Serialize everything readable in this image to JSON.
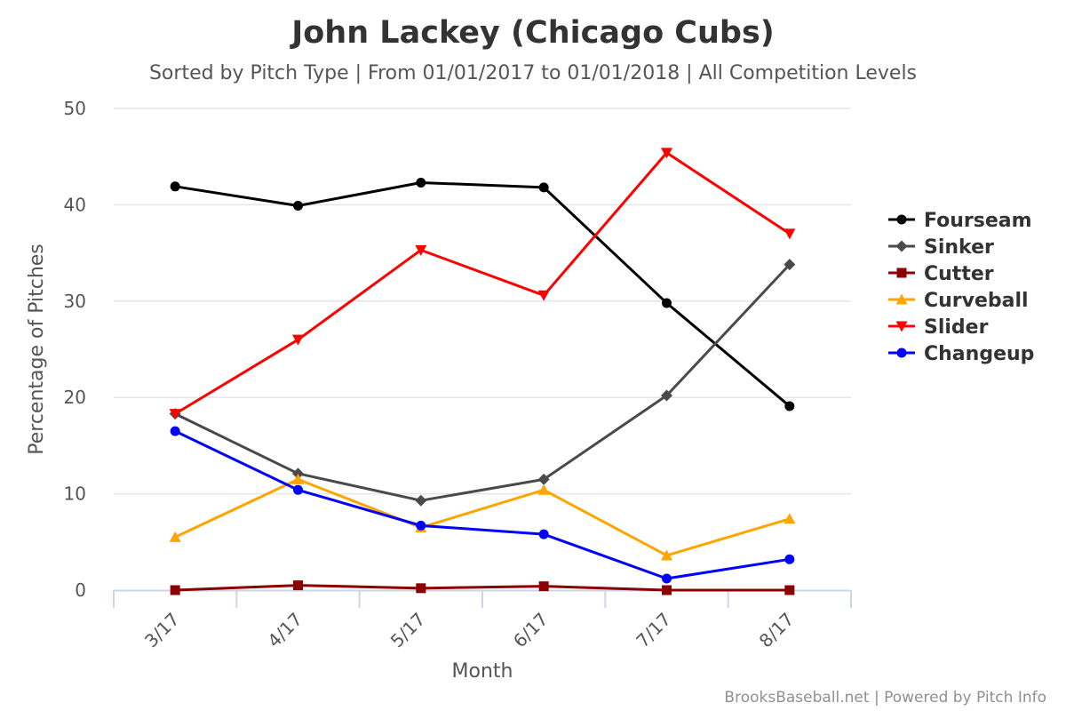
{
  "chart_data": {
    "type": "line",
    "title": "John Lackey (Chicago Cubs)",
    "subtitle": "Sorted by Pitch Type | From 01/01/2017 to 01/01/2018 | All Competition Levels",
    "xlabel": "Month",
    "ylabel": "Percentage of Pitches",
    "categories": [
      "3/17",
      "4/17",
      "5/17",
      "6/17",
      "7/17",
      "8/17"
    ],
    "ylim": [
      0,
      50
    ],
    "yticks": [
      0,
      10,
      20,
      30,
      40,
      50
    ],
    "grid": true,
    "legend_position": "right",
    "series": [
      {
        "name": "Fourseam",
        "color": "#000000",
        "marker": "circle",
        "values": [
          41.9,
          39.9,
          42.3,
          41.8,
          29.8,
          19.1
        ]
      },
      {
        "name": "Sinker",
        "color": "#4a4a4a",
        "marker": "diamond",
        "values": [
          18.3,
          12.1,
          9.3,
          11.5,
          20.2,
          33.8
        ]
      },
      {
        "name": "Cutter",
        "color": "#8b0000",
        "marker": "square",
        "values": [
          0.0,
          0.5,
          0.2,
          0.4,
          0.0,
          0.0
        ]
      },
      {
        "name": "Curveball",
        "color": "#ffa500",
        "marker": "triangle-up",
        "values": [
          5.5,
          11.5,
          6.5,
          10.4,
          3.6,
          7.4
        ]
      },
      {
        "name": "Slider",
        "color": "#ff0000",
        "marker": "triangle-down",
        "values": [
          18.3,
          26.0,
          35.3,
          30.6,
          45.4,
          37.0
        ]
      },
      {
        "name": "Changeup",
        "color": "#0000ff",
        "marker": "circle",
        "values": [
          16.5,
          10.4,
          6.7,
          5.8,
          1.2,
          3.2
        ]
      }
    ]
  },
  "credits": "BrooksBaseball.net | Powered by Pitch Info"
}
